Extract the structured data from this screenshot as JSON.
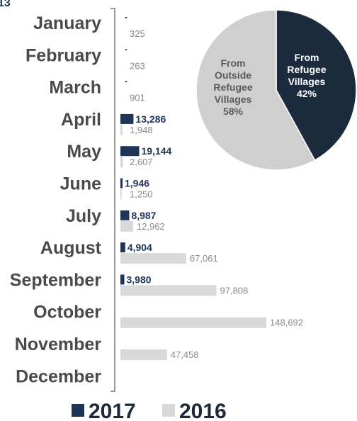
{
  "corner_label": "13",
  "chart_data": [
    {
      "type": "bar",
      "orientation": "horizontal",
      "categories": [
        "January",
        "February",
        "March",
        "April",
        "May",
        "June",
        "July",
        "August",
        "September",
        "October",
        "November",
        "December"
      ],
      "series": [
        {
          "name": "2017",
          "color": "#1e3556",
          "values": [
            null,
            null,
            null,
            13286,
            19144,
            1946,
            8987,
            4904,
            3980,
            null,
            null,
            null
          ],
          "labels": [
            "-",
            "-",
            "-",
            "13,286",
            "19,144",
            "1,946",
            "8,987",
            "4,904",
            "3,980",
            "",
            "",
            ""
          ]
        },
        {
          "name": "2016",
          "color": "#d9d9d9",
          "values": [
            325,
            263,
            901,
            1948,
            2607,
            1250,
            12962,
            67061,
            97808,
            148692,
            47458,
            null
          ],
          "labels": [
            "325",
            "263",
            "901",
            "1,948",
            "2,607",
            "1,250",
            "12,962",
            "67,061",
            "97,808",
            "148,692",
            "47,458",
            ""
          ]
        }
      ],
      "xlim": [
        0,
        148692
      ],
      "grid": false,
      "legend": "bottom"
    },
    {
      "type": "pie",
      "slices": [
        {
          "lines": [
            "From",
            "Refugee",
            "Villages",
            "42%"
          ],
          "value": 42,
          "color": "#1c2a3d",
          "text_color": "#ffffff"
        },
        {
          "lines": [
            "From",
            "Outside",
            "Refugee",
            "Villages",
            "58%"
          ],
          "value": 58,
          "color": "#cfcfcf",
          "text_color": "#5a5a5a"
        }
      ]
    }
  ]
}
